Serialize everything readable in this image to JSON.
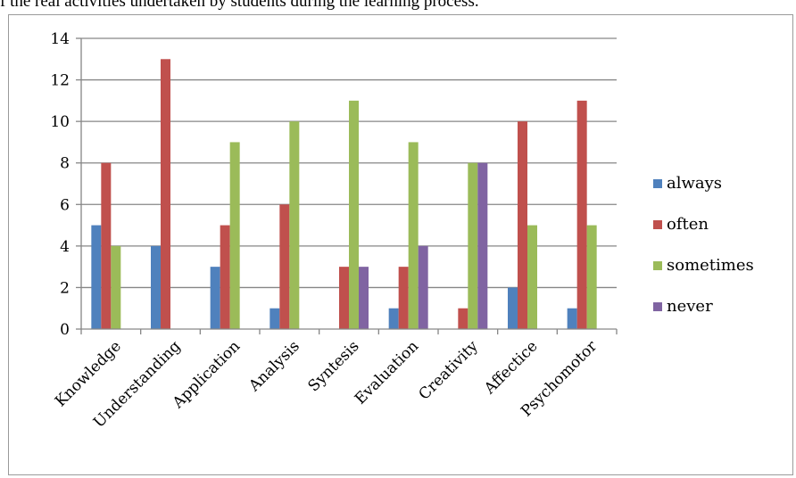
{
  "caption": "f the real activities undertaken by students during the learning process.",
  "chart_data": {
    "type": "bar",
    "categories": [
      "Knowledge",
      "Understanding",
      "Application",
      "Analysis",
      "Syntesis",
      "Evaluation",
      "Creativity",
      "Affectice",
      "Psychomotor"
    ],
    "series": [
      {
        "name": "always",
        "color": "#4f81bd",
        "values": [
          5,
          4,
          3,
          1,
          0,
          1,
          0,
          2,
          1
        ]
      },
      {
        "name": "often",
        "color": "#c0504d",
        "values": [
          8,
          13,
          5,
          6,
          3,
          3,
          1,
          10,
          11
        ]
      },
      {
        "name": "sometimes",
        "color": "#9bbb59",
        "values": [
          4,
          0,
          9,
          10,
          11,
          9,
          8,
          5,
          5
        ]
      },
      {
        "name": "never",
        "color": "#8064a2",
        "values": [
          0,
          0,
          0,
          0,
          3,
          4,
          8,
          0,
          0
        ]
      }
    ],
    "ylim": [
      0,
      14
    ],
    "yticks": [
      "0",
      "2",
      "4",
      "6",
      "8",
      "10",
      "12",
      "14"
    ],
    "grid": true,
    "legend": "right",
    "title": "",
    "xlabel": "",
    "ylabel": ""
  }
}
